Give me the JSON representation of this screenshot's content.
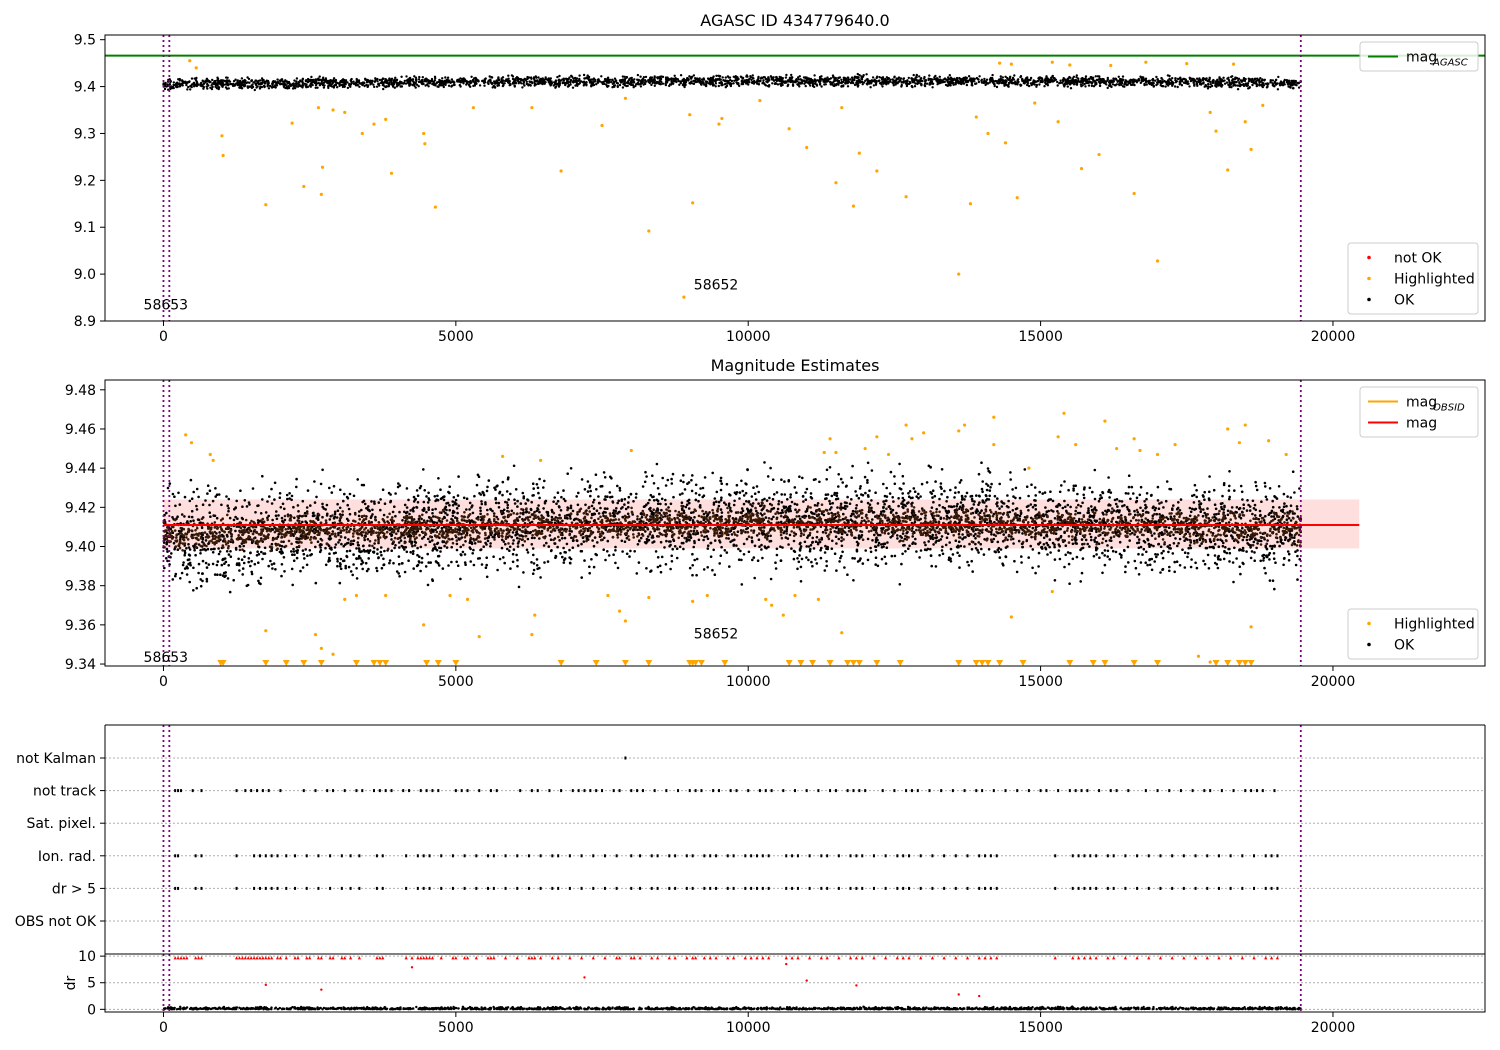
{
  "chart_data": [
    {
      "id": "panel1",
      "type": "scatter",
      "title": "AGASC ID 434779640.0",
      "xlabel": "",
      "ylabel": "",
      "xlim": [
        -1000,
        22600
      ],
      "ylim": [
        8.9,
        9.51
      ],
      "x_ticks": [
        0,
        5000,
        10000,
        15000,
        20000
      ],
      "y_ticks": [
        8.9,
        9.0,
        9.1,
        9.2,
        9.3,
        9.4,
        9.5
      ],
      "grid": false,
      "hlines": [
        {
          "name": "mag_AGASC",
          "y": 9.466,
          "color": "#008000"
        }
      ],
      "vlines": [
        0,
        100,
        19450
      ],
      "ok_band": {
        "x_start": 0,
        "x_end": 19450,
        "y_center_start": 9.405,
        "y_center_end": 9.412,
        "spread": 0.016
      },
      "series": [
        {
          "name": "Highlighted",
          "color": "#ffa500",
          "x": [
            450,
            560,
            1000,
            1020,
            1750,
            2200,
            2400,
            2650,
            2700,
            2720,
            2900,
            3100,
            3400,
            3600,
            3800,
            3900,
            4450,
            4470,
            4650,
            5300,
            6300,
            6800,
            7500,
            7900,
            8300,
            8900,
            9000,
            9050,
            9500,
            9550,
            10200,
            10700,
            11000,
            11500,
            11600,
            11800,
            11900,
            12200,
            12700,
            13600,
            13800,
            13900,
            14100,
            14400,
            14600,
            14900,
            15300,
            15700,
            16000,
            16600,
            17000,
            17900,
            18000,
            18200,
            18500,
            18600,
            18800,
            14300,
            14500,
            15200,
            15500,
            16200,
            16800,
            17500,
            18300
          ],
          "y": [
            9.455,
            9.44,
            9.295,
            9.253,
            9.148,
            9.322,
            9.187,
            9.355,
            9.17,
            9.228,
            9.35,
            9.345,
            9.3,
            9.32,
            9.33,
            9.215,
            9.3,
            9.278,
            9.143,
            9.355,
            9.355,
            9.22,
            9.317,
            9.375,
            9.092,
            8.951,
            9.34,
            9.152,
            9.32,
            9.332,
            9.37,
            9.31,
            9.27,
            9.195,
            9.355,
            9.145,
            9.258,
            9.22,
            9.165,
            9.0,
            9.15,
            9.335,
            9.3,
            9.28,
            9.163,
            9.365,
            9.325,
            9.225,
            9.255,
            9.172,
            9.028,
            9.345,
            9.305,
            9.222,
            9.325,
            9.266,
            9.36,
            9.45,
            9.448,
            9.452,
            9.446,
            9.445,
            9.452,
            9.449,
            9.448
          ]
        },
        {
          "name": "not OK",
          "color": "#ff0000",
          "x": [],
          "y": []
        },
        {
          "name": "OK",
          "color": "#000000",
          "x": [],
          "y": []
        }
      ],
      "annotations": [
        {
          "text": "58653",
          "x": 40,
          "y": 8.92
        },
        {
          "text": "58652",
          "x": 9450,
          "y": 8.963
        }
      ],
      "legends": [
        {
          "position": "upper right",
          "entries": [
            {
              "label": "mag",
              "sub": "AGASC",
              "kind": "line",
              "color": "#008000"
            }
          ]
        },
        {
          "position": "lower right",
          "entries": [
            {
              "label": "not OK",
              "kind": "dot",
              "color": "#ff0000"
            },
            {
              "label": "Highlighted",
              "kind": "dot",
              "color": "#ffa500"
            },
            {
              "label": "OK",
              "kind": "dot",
              "color": "#000000"
            }
          ]
        }
      ]
    },
    {
      "id": "panel2",
      "type": "scatter",
      "title": "Magnitude Estimates",
      "xlabel": "",
      "ylabel": "",
      "xlim": [
        -1000,
        22600
      ],
      "ylim": [
        9.339,
        9.485
      ],
      "x_ticks": [
        0,
        5000,
        10000,
        15000,
        20000
      ],
      "y_ticks": [
        9.34,
        9.36,
        9.38,
        9.4,
        9.42,
        9.44,
        9.46,
        9.48
      ],
      "grid": false,
      "hlines": [
        {
          "name": "mag",
          "y": 9.411,
          "color": "#ff0000",
          "x_start": 0,
          "x_end": 20450
        }
      ],
      "band": {
        "y_low": 9.399,
        "y_high": 9.424,
        "x_start": 0,
        "x_end": 20450,
        "color": "#ffdede"
      },
      "vlines": [
        0,
        100,
        19450
      ],
      "ok_band": {
        "x_start": 0,
        "x_end": 19450,
        "y_center_start": 9.404,
        "y_center_end": 9.413,
        "spread": 0.034
      },
      "obsid_band": {
        "x_start": 0,
        "x_end": 19450,
        "y_center_start": 9.406,
        "y_center_end": 9.412,
        "spread": 0.011
      },
      "series": [
        {
          "name": "mag_OBSID",
          "color": "#ffa500",
          "x": [],
          "y": []
        },
        {
          "name": "Highlighted",
          "color": "#ffa500",
          "x": [
            380,
            480,
            800,
            850,
            1000,
            1750,
            2600,
            2700,
            2900,
            3100,
            3300,
            3800,
            4450,
            4900,
            5200,
            5400,
            5800,
            6300,
            6350,
            6450,
            7600,
            7800,
            7900,
            8000,
            8300,
            9050,
            9300,
            10300,
            10400,
            10600,
            10800,
            11200,
            11400,
            11500,
            11600,
            12000,
            12200,
            12400,
            12700,
            13000,
            13600,
            13700,
            14200,
            14500,
            14800,
            15200,
            15400,
            15600,
            16100,
            16300,
            16600,
            17000,
            17300,
            17700,
            17900,
            18200,
            18500,
            18600,
            18900,
            11300,
            12800,
            14200,
            15300,
            16700,
            18400,
            19200
          ],
          "y": [
            9.457,
            9.453,
            9.447,
            9.444,
            9.341,
            9.357,
            9.355,
            9.348,
            9.345,
            9.373,
            9.375,
            9.375,
            9.36,
            9.375,
            9.373,
            9.354,
            9.446,
            9.355,
            9.365,
            9.444,
            9.375,
            9.367,
            9.362,
            9.449,
            9.374,
            9.372,
            9.375,
            9.373,
            9.37,
            9.365,
            9.375,
            9.373,
            9.455,
            9.448,
            9.356,
            9.45,
            9.456,
            9.447,
            9.462,
            9.458,
            9.459,
            9.462,
            9.466,
            9.364,
            9.44,
            9.377,
            9.468,
            9.452,
            9.464,
            9.45,
            9.455,
            9.447,
            9.452,
            9.344,
            9.341,
            9.46,
            9.462,
            9.359,
            9.454,
            9.448,
            9.455,
            9.452,
            9.456,
            9.449,
            9.453,
            9.447
          ]
        },
        {
          "name": "OK",
          "color": "#000000",
          "x": [],
          "y": []
        }
      ],
      "triangles": {
        "y": 9.3405,
        "x": [
          980,
          1020,
          1750,
          2100,
          2400,
          2700,
          3300,
          3600,
          3700,
          3800,
          4500,
          4700,
          5000,
          6800,
          7400,
          7900,
          8300,
          9000,
          9050,
          9100,
          9200,
          9600,
          10700,
          10900,
          11100,
          11400,
          11700,
          11800,
          11900,
          12200,
          12600,
          13600,
          13900,
          14000,
          14100,
          14300,
          14700,
          15500,
          15900,
          16100,
          16600,
          17000,
          18000,
          18200,
          18400,
          18500,
          18600
        ]
      },
      "annotations": [
        {
          "text": "58653",
          "x": 40,
          "y": 9.3425
        },
        {
          "text": "58652",
          "x": 9450,
          "y": 9.3545
        }
      ],
      "legends": [
        {
          "position": "upper right",
          "entries": [
            {
              "label": "mag",
              "sub": "OBSID",
              "kind": "line",
              "color": "#ffa500"
            },
            {
              "label": "mag",
              "kind": "line",
              "color": "#ff0000"
            }
          ]
        },
        {
          "position": "lower right",
          "entries": [
            {
              "label": "Highlighted",
              "kind": "dot",
              "color": "#ffa500"
            },
            {
              "label": "OK",
              "kind": "dot",
              "color": "#000000"
            }
          ]
        }
      ]
    },
    {
      "id": "panel3",
      "type": "scatter",
      "title": "",
      "xlabel": "",
      "ylabel": "",
      "xlim": [
        -1000,
        22600
      ],
      "categories": [
        "not Kalman",
        "not track",
        "Sat. pixel.",
        "Ion. rad.",
        "dr > 5",
        "OBS not OK"
      ],
      "grid": true,
      "vlines": [
        0,
        100,
        19450
      ],
      "flags": {
        "not Kalman": [
          7900
        ],
        "not track": [
          200,
          250,
          300,
          500,
          650,
          1250,
          1400,
          1500,
          1600,
          1700,
          1800,
          2000,
          2400,
          2600,
          2800,
          2900,
          3100,
          3300,
          3400,
          3600,
          3700,
          3800,
          3900,
          4100,
          4200,
          4400,
          4500,
          4600,
          4700,
          5000,
          5100,
          5200,
          5400,
          5600,
          5700,
          6100,
          6300,
          6400,
          6600,
          6800,
          7000,
          7100,
          7200,
          7300,
          7400,
          7500,
          7700,
          7800,
          8000,
          8100,
          8200,
          8400,
          8600,
          8800,
          9000,
          9100,
          9200,
          9400,
          9500,
          9700,
          9800,
          10000,
          10200,
          10300,
          10400,
          10600,
          10800,
          11000,
          11200,
          11400,
          11500,
          11700,
          11800,
          11900,
          12000,
          12300,
          12500,
          12700,
          12800,
          12900,
          13100,
          13300,
          13500,
          13700,
          13900,
          14000,
          14200,
          14400,
          14600,
          14800,
          15000,
          15100,
          15300,
          15500,
          15600,
          15700,
          15800,
          16000,
          16200,
          16300,
          16500,
          16800,
          17000,
          17200,
          17400,
          17600,
          17800,
          17900,
          18100,
          18300,
          18500,
          18600,
          18700,
          18800,
          19000
        ],
        "Sat. pixel.": [],
        "Ion. rad.": [
          200,
          250,
          550,
          650,
          1250,
          1550,
          1650,
          1750,
          1850,
          1950,
          2100,
          2250,
          2450,
          2650,
          2850,
          3050,
          3200,
          3350,
          3650,
          3750,
          4150,
          4350,
          4450,
          4550,
          4750,
          4950,
          5150,
          5350,
          5550,
          5650,
          5850,
          6050,
          6250,
          6450,
          6650,
          6750,
          6950,
          7150,
          7350,
          7550,
          7750,
          8000,
          8150,
          8350,
          8450,
          8650,
          8750,
          8950,
          9050,
          9250,
          9350,
          9450,
          9650,
          9750,
          9950,
          10050,
          10150,
          10250,
          10350,
          10650,
          10750,
          10850,
          11050,
          11250,
          11350,
          11550,
          11750,
          11850,
          11950,
          12150,
          12350,
          12550,
          12650,
          12750,
          12950,
          13150,
          13350,
          13550,
          13750,
          13950,
          14050,
          14150,
          14250,
          15250,
          15550,
          15650,
          15750,
          15850,
          15950,
          16150,
          16250,
          16450,
          16650,
          16850,
          17050,
          17250,
          17450,
          17650,
          17850,
          18050,
          18250,
          18450,
          18650,
          18850,
          18950,
          19050
        ],
        "dr > 5": [
          200,
          250,
          550,
          650,
          1250,
          1550,
          1650,
          1750,
          1850,
          1950,
          2100,
          2250,
          2450,
          2650,
          2850,
          3050,
          3200,
          3350,
          3650,
          3750,
          4150,
          4350,
          4450,
          4550,
          4750,
          4950,
          5150,
          5350,
          5550,
          5650,
          5850,
          6050,
          6250,
          6450,
          6650,
          6750,
          6950,
          7150,
          7350,
          7550,
          7750,
          8000,
          8150,
          8350,
          8450,
          8650,
          8750,
          8950,
          9050,
          9250,
          9350,
          9450,
          9650,
          9750,
          9950,
          10050,
          10150,
          10250,
          10350,
          10650,
          10750,
          10850,
          11050,
          11250,
          11350,
          11550,
          11750,
          11850,
          11950,
          12150,
          12350,
          12550,
          12650,
          12750,
          12950,
          13150,
          13350,
          13550,
          13750,
          13950,
          14050,
          14150,
          14250,
          15250,
          15550,
          15650,
          15750,
          15850,
          15950,
          16150,
          16250,
          16450,
          16650,
          16850,
          17050,
          17250,
          17450,
          17650,
          17850,
          18050,
          18250,
          18450,
          18650,
          18850,
          18950,
          19050
        ],
        "OBS not OK": []
      }
    },
    {
      "id": "panel4",
      "type": "scatter",
      "title": "",
      "xlabel": "",
      "ylabel": "dr",
      "xlim": [
        -1000,
        22600
      ],
      "ylim": [
        -0.5,
        10.4
      ],
      "x_ticks": [
        0,
        5000,
        10000,
        15000,
        20000
      ],
      "y_ticks": [
        0,
        5,
        10
      ],
      "grid": true,
      "vlines": [
        0,
        100,
        19450
      ],
      "capped_value": 9.7,
      "capped_x": [
        200,
        250,
        300,
        350,
        400,
        550,
        600,
        650,
        1250,
        1300,
        1350,
        1400,
        1450,
        1500,
        1550,
        1600,
        1650,
        1700,
        1750,
        1800,
        1850,
        1950,
        2000,
        2100,
        2250,
        2300,
        2450,
        2500,
        2650,
        2700,
        2850,
        2900,
        3050,
        3100,
        3200,
        3350,
        3650,
        3700,
        3750,
        4150,
        4250,
        4350,
        4400,
        4450,
        4500,
        4550,
        4600,
        4750,
        4950,
        5000,
        5150,
        5200,
        5350,
        5550,
        5600,
        5650,
        5850,
        6050,
        6250,
        6300,
        6350,
        6450,
        6650,
        6750,
        6950,
        7150,
        7350,
        7550,
        7750,
        7800,
        8000,
        8050,
        8150,
        8350,
        8450,
        8650,
        8750,
        8950,
        9050,
        9100,
        9250,
        9350,
        9450,
        9650,
        9750,
        9950,
        10050,
        10150,
        10250,
        10350,
        10650,
        10750,
        10850,
        11050,
        11250,
        11350,
        11550,
        11750,
        11850,
        11950,
        12150,
        12350,
        12550,
        12650,
        12750,
        12950,
        13150,
        13350,
        13550,
        13750,
        13950,
        14050,
        14150,
        14250,
        15250,
        15550,
        15650,
        15750,
        15850,
        15950,
        16150,
        16250,
        16450,
        16650,
        16850,
        17050,
        17250,
        17450,
        17650,
        17850,
        18050,
        18250,
        18450,
        18650,
        18850,
        18950,
        19050
      ],
      "outliers": {
        "x": [
          1750,
          2700,
          4250,
          7200,
          10650,
          11000,
          11850,
          13600,
          13950
        ],
        "y": [
          4.6,
          3.7,
          7.9,
          6.0,
          8.5,
          5.4,
          4.5,
          2.8,
          2.5
        ]
      },
      "series": [
        {
          "name": "dr",
          "color": "#000000",
          "x": [],
          "y": []
        }
      ]
    }
  ]
}
